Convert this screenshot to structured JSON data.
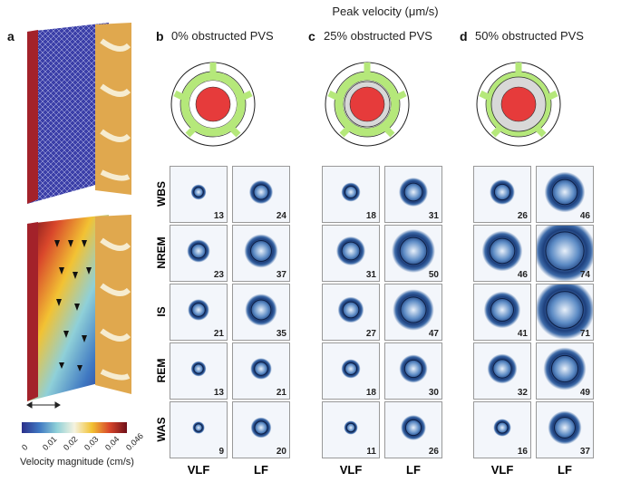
{
  "header": {
    "title": "Peak velocity (μm/s)"
  },
  "panel_a": {
    "label": "a",
    "colorbar": {
      "ticks": [
        "0",
        "0.01",
        "0.02",
        "0.03",
        "0.04",
        "0.046"
      ],
      "label": "Velocity magnitude (cm/s)",
      "colors": [
        "#2b2f8a",
        "#3f78c2",
        "#8fd0d8",
        "#f5f3e0",
        "#f2c233",
        "#d9472b",
        "#6e0f1a"
      ]
    }
  },
  "panels": [
    {
      "label": "b",
      "title": "0% obstructed PVS",
      "obstruction": 0,
      "vlf": [
        13,
        23,
        21,
        13,
        9
      ],
      "lf": [
        24,
        37,
        35,
        21,
        20
      ]
    },
    {
      "label": "c",
      "title": "25% obstructed PVS",
      "obstruction": 25,
      "vlf": [
        18,
        31,
        27,
        18,
        11
      ],
      "lf": [
        31,
        50,
        47,
        30,
        26
      ]
    },
    {
      "label": "d",
      "title": "50% obstructed PVS",
      "obstruction": 50,
      "vlf": [
        26,
        46,
        41,
        32,
        16
      ],
      "lf": [
        46,
        74,
        71,
        49,
        37
      ]
    }
  ],
  "rows": [
    "WBS",
    "NREM",
    "IS",
    "REM",
    "WAS"
  ],
  "columns": [
    "VLF",
    "LF"
  ],
  "colors": {
    "artery": "#e63b3b",
    "pvs": "#b5e87a",
    "ring": "#1d3f7c"
  }
}
